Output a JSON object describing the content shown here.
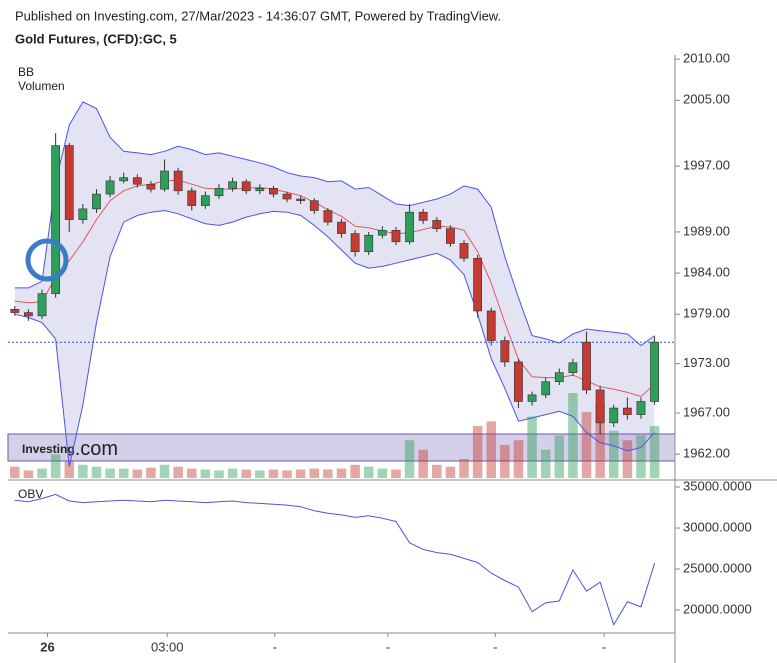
{
  "header": {
    "published": "Published on Investing.com, 27/Mar/2023 - 14:36:07 GMT, Powered by TradingView.",
    "symbol": "Gold Futures, (CFD):GC, 5"
  },
  "watermark": {
    "brand": "Investing",
    "suffix": ".com"
  },
  "chart_data": [
    {
      "type": "candlestick",
      "indicators": [
        "BB",
        "Volumen"
      ],
      "xlim": [
        -0.5,
        48.5
      ],
      "ylim": [
        1959.1,
        2010.5
      ],
      "yticks": [
        {
          "value": 2010,
          "label": "2010.00"
        },
        {
          "value": 2005,
          "label": "2005.00"
        },
        {
          "value": 1997,
          "label": "1997.00"
        },
        {
          "value": 1989,
          "label": "1989.00"
        },
        {
          "value": 1984,
          "label": "1984.00"
        },
        {
          "value": 1979,
          "label": "1979.00"
        },
        {
          "value": 1973,
          "label": "1973.00"
        },
        {
          "value": 1967,
          "label": "1967.00"
        },
        {
          "value": 1962,
          "label": "1962.00"
        }
      ],
      "up_color": "#2e9e5b",
      "down_color": "#c33b32",
      "open": [
        1979.6,
        1979.2,
        1978.8,
        1981.5,
        1999.5,
        1990.5,
        1991.8,
        1993.6,
        1995.2,
        1995.6,
        1994.8,
        1994.2,
        1996.4,
        1994.0,
        1992.2,
        1993.4,
        1994.3,
        1995.1,
        1994.0,
        1994.3,
        1993.6,
        1993.0,
        1992.8,
        1991.6,
        1990.2,
        1988.8,
        1986.6,
        1988.6,
        1989.2,
        1987.8,
        1991.4,
        1990.4,
        1989.4,
        1987.6,
        1985.8,
        1979.4,
        1975.8,
        1973.2,
        1968.4,
        1969.2,
        1970.8,
        1971.9,
        1975.6,
        1969.8,
        1965.8,
        1967.6,
        1966.8,
        1968.4
      ],
      "high": [
        1980.0,
        1979.6,
        1982.0,
        2001.0,
        1999.8,
        1992.4,
        1994.2,
        1995.8,
        1996.2,
        1996.0,
        1995.2,
        1997.8,
        1996.8,
        1994.4,
        1993.9,
        1994.8,
        1995.6,
        1995.4,
        1994.8,
        1994.6,
        1993.9,
        1993.4,
        1993.1,
        1991.9,
        1990.6,
        1989.2,
        1989.0,
        1989.7,
        1989.6,
        1992.4,
        1991.8,
        1990.8,
        1989.8,
        1988.0,
        1986.2,
        1979.8,
        1976.3,
        1973.6,
        1969.6,
        1971.3,
        1972.4,
        1973.6,
        1976.9,
        1970.3,
        1968.0,
        1968.9,
        1968.9,
        1976.3
      ],
      "low": [
        1978.8,
        1978.2,
        1978.4,
        1981.0,
        1989.0,
        1990.0,
        1991.3,
        1993.2,
        1994.9,
        1994.4,
        1993.8,
        1993.9,
        1993.5,
        1991.6,
        1991.8,
        1993.0,
        1993.9,
        1993.6,
        1993.6,
        1993.2,
        1992.6,
        1992.4,
        1991.2,
        1989.8,
        1988.3,
        1986.0,
        1986.2,
        1988.2,
        1987.4,
        1987.5,
        1990.0,
        1989.0,
        1987.2,
        1985.4,
        1978.6,
        1975.2,
        1972.6,
        1967.6,
        1967.9,
        1968.8,
        1970.4,
        1971.5,
        1969.3,
        1964.4,
        1965.3,
        1966.2,
        1966.3,
        1968.0
      ],
      "close": [
        1979.2,
        1978.8,
        1981.5,
        1999.5,
        1990.5,
        1991.8,
        1993.6,
        1995.2,
        1995.6,
        1994.8,
        1994.2,
        1996.4,
        1994.0,
        1992.2,
        1993.4,
        1994.3,
        1995.1,
        1994.0,
        1994.3,
        1993.6,
        1993.0,
        1992.8,
        1991.6,
        1990.2,
        1988.8,
        1986.6,
        1988.6,
        1989.2,
        1987.8,
        1991.4,
        1990.4,
        1989.4,
        1987.6,
        1985.8,
        1979.4,
        1975.8,
        1973.2,
        1968.4,
        1969.2,
        1970.8,
        1971.9,
        1973.1,
        1969.8,
        1965.8,
        1967.6,
        1966.8,
        1968.4,
        1975.6
      ],
      "bollinger": {
        "color": "#4b55e6",
        "mid_color": "#e05a5a",
        "fill": "#dcdcf0",
        "upper": [
          1982.2,
          1982.2,
          1983.0,
          1995,
          2002,
          2004.8,
          2004.0,
          2000.5,
          1998.8,
          1998.6,
          1998.4,
          1998.8,
          1999.4,
          1999.0,
          1998.4,
          1998.6,
          1998.2,
          1997.8,
          1997.4,
          1996.9,
          1996.2,
          1995.8,
          1995.6,
          1995.1,
          1995.2,
          1994.2,
          1994.4,
          1993.4,
          1992.4,
          1992.2,
          1992.6,
          1993.0,
          1993.6,
          1994.6,
          1994.2,
          1992.0,
          1986.0,
          1981.0,
          1976.4,
          1976.0,
          1975.5,
          1976.6,
          1977.2,
          1977.0,
          1976.8,
          1976.6,
          1975.2,
          1976.4
        ],
        "middle": [
          1980.6,
          1980.4,
          1980.5,
          1983.5,
          1985.5,
          1987.8,
          1990.5,
          1992.8,
          1994.0,
          1994.6,
          1994.8,
          1995.2,
          1995.3,
          1994.8,
          1994.3,
          1994.2,
          1994.2,
          1994.3,
          1994.4,
          1994.2,
          1993.8,
          1993.4,
          1992.6,
          1991.7,
          1990.9,
          1989.7,
          1989.5,
          1989.1,
          1988.8,
          1988.9,
          1989.3,
          1989.7,
          1989.6,
          1989.2,
          1986.6,
          1982.8,
          1978.0,
          1973.5,
          1971.4,
          1971.3,
          1971.3,
          1971.6,
          1970.9,
          1970.2,
          1969.9,
          1969.5,
          1969.0,
          1970.5
        ],
        "lower": [
          1979.0,
          1978.6,
          1978.0,
          1976.0,
          1960.5,
          1968,
          1978,
          1986,
          1990.2,
          1991.0,
          1991.4,
          1991.6,
          1991.2,
          1990.6,
          1990.0,
          1989.8,
          1990.2,
          1990.8,
          1991.2,
          1991.5,
          1991.4,
          1991.0,
          1989.8,
          1988.4,
          1986.8,
          1985.2,
          1984.6,
          1984.8,
          1985.2,
          1985.6,
          1986.0,
          1986.4,
          1985.6,
          1983.8,
          1979.0,
          1973.6,
          1970.0,
          1966.0,
          1966.4,
          1966.8,
          1967.2,
          1966.6,
          1964.6,
          1963.4,
          1963.0,
          1962.4,
          1962.8,
          1964.6
        ]
      },
      "volume": [
        12,
        8,
        10,
        25,
        18,
        14,
        12,
        10,
        10,
        9,
        11,
        14,
        12,
        10,
        9,
        8,
        10,
        9,
        8,
        9,
        8,
        9,
        10,
        9,
        10,
        14,
        12,
        10,
        9,
        40,
        30,
        14,
        12,
        20,
        55,
        60,
        35,
        40,
        65,
        30,
        45,
        90,
        70,
        80,
        50,
        40,
        45,
        55
      ],
      "last_price": 1975.6,
      "last_price_color": "#3050d0"
    },
    {
      "type": "line",
      "label": "OBV",
      "color": "#4b55e6",
      "xlim": [
        -0.5,
        48.5
      ],
      "ylim": [
        17200,
        35370
      ],
      "yticks": [
        {
          "value": 35000,
          "label": "35000.0000"
        },
        {
          "value": 30000,
          "label": "30000.0000"
        },
        {
          "value": 25000,
          "label": "25000.0000"
        },
        {
          "value": 20000,
          "label": "20000.0000"
        }
      ],
      "xticks": [
        {
          "value": 2.4,
          "label": "26"
        },
        {
          "value": 11.2,
          "label": "03:00"
        },
        {
          "value": 19.1,
          "label": "-"
        },
        {
          "value": 27.4,
          "label": "-"
        },
        {
          "value": 35.3,
          "label": "-"
        },
        {
          "value": 43.3,
          "label": "-"
        }
      ],
      "values": [
        33400,
        33200,
        33600,
        34100,
        33300,
        33100,
        33200,
        33300,
        33400,
        33300,
        33200,
        33400,
        33300,
        33200,
        33100,
        33200,
        33300,
        33100,
        33000,
        32900,
        32800,
        32600,
        32100,
        31800,
        31600,
        31300,
        31500,
        31200,
        30800,
        28200,
        27400,
        27000,
        26800,
        26300,
        25800,
        24500,
        23600,
        22800,
        19800,
        20900,
        21100,
        24900,
        22300,
        23400,
        18200,
        21000,
        20400,
        25700
      ]
    }
  ]
}
